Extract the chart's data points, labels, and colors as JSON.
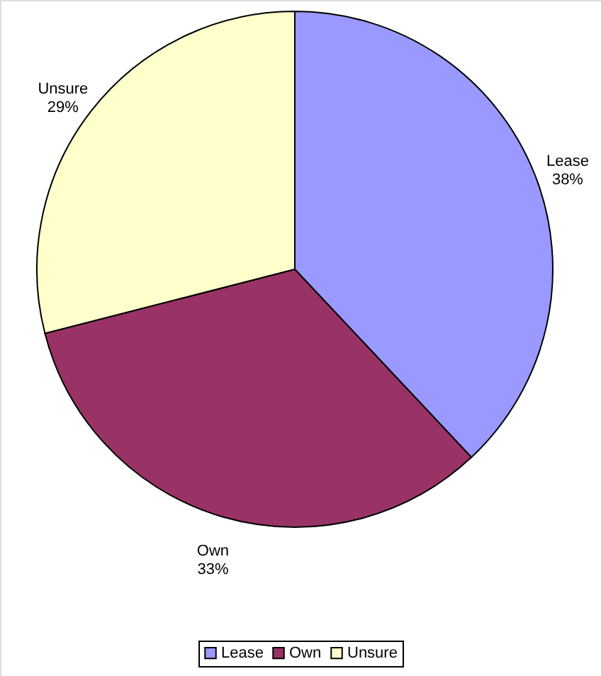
{
  "chart_data": {
    "type": "pie",
    "categories": [
      "Lease",
      "Own",
      "Unsure"
    ],
    "values": [
      38,
      33,
      29
    ],
    "value_labels": [
      "38%",
      "33%",
      "29%"
    ],
    "colors": [
      "#9999ff",
      "#993366",
      "#ffffcc"
    ],
    "legend": "bottom"
  }
}
